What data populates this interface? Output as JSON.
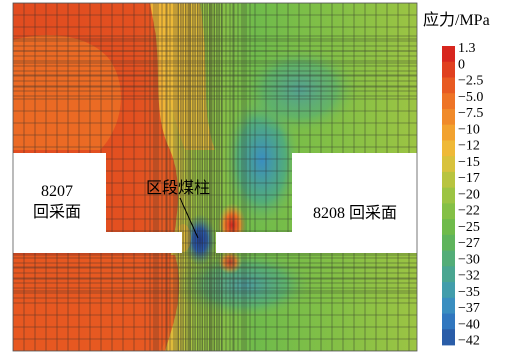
{
  "diagram": {
    "left_face_label_line1": "8207",
    "left_face_label_line2": "回采面",
    "right_face_label": "8208 回采面",
    "pillar_label": "区段煤柱"
  },
  "legend": {
    "title": "应力/MPa",
    "ticks": [
      "1.3",
      "0",
      "−2.5",
      "−5.0",
      "−7.5",
      "−10",
      "−12",
      "−15",
      "−17",
      "−20",
      "−22",
      "−25",
      "−27",
      "−30",
      "−32",
      "−35",
      "−37",
      "−40",
      "−42"
    ],
    "colors": [
      "#d7261e",
      "#e0401f",
      "#e85a22",
      "#ee7426",
      "#f08a2a",
      "#f2a22f",
      "#efb938",
      "#d8c23d",
      "#b8c43f",
      "#9cc443",
      "#84c046",
      "#6fbb4b",
      "#5fb45c",
      "#53ad78",
      "#4aa691",
      "#429dab",
      "#3a8ec0",
      "#3177bf",
      "#2a5da8"
    ]
  }
}
